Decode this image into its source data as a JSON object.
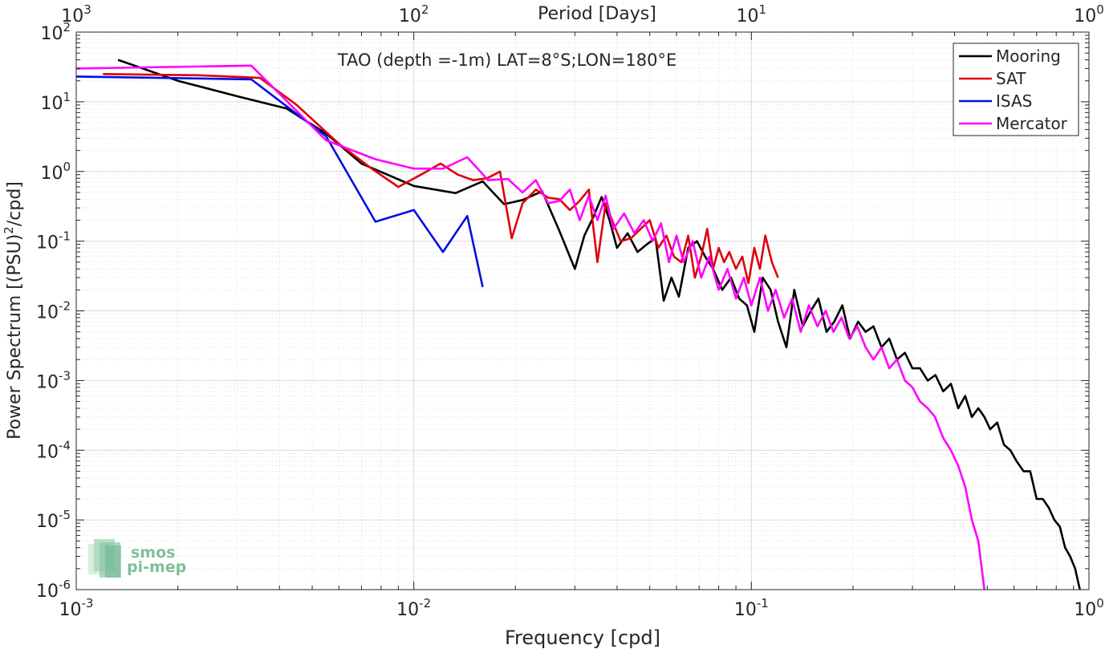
{
  "chart_data": {
    "type": "line",
    "title": "TAO (depth =-1m) LAT=8°S;LON=180°E",
    "xlabel": "Frequency [cpd]",
    "ylabel": "Power Spectrum [(PSU)",
    "ylabel_sup": "2",
    "ylabel_tail": "/cpd]",
    "top_axis_label": "Period [Days]",
    "x_scale": "log",
    "y_scale": "log",
    "xlim": [
      0.001,
      1
    ],
    "ylim": [
      1e-06,
      100
    ],
    "grid": true,
    "legend_position": "top-right",
    "x_ticks": [
      {
        "base": "10",
        "exp": "-3"
      },
      {
        "base": "10",
        "exp": "-2"
      },
      {
        "base": "10",
        "exp": "-1"
      },
      {
        "base": "10",
        "exp": "0"
      }
    ],
    "y_ticks": [
      {
        "base": "10",
        "exp": "-6"
      },
      {
        "base": "10",
        "exp": "-5"
      },
      {
        "base": "10",
        "exp": "-4"
      },
      {
        "base": "10",
        "exp": "-3"
      },
      {
        "base": "10",
        "exp": "-2"
      },
      {
        "base": "10",
        "exp": "-1"
      },
      {
        "base": "10",
        "exp": "0"
      },
      {
        "base": "10",
        "exp": "1"
      },
      {
        "base": "10",
        "exp": "2"
      }
    ],
    "top_ticks": [
      {
        "base": "10",
        "exp": "3"
      },
      {
        "base": "10",
        "exp": "2"
      },
      {
        "base": "10",
        "exp": "1"
      },
      {
        "base": "10",
        "exp": "0"
      }
    ],
    "series": [
      {
        "name": "Mooring",
        "color": "#000000",
        "x": [
          0.00133,
          0.002,
          0.003,
          0.0042,
          0.0055,
          0.007,
          0.01,
          0.0133,
          0.016,
          0.0185,
          0.021,
          0.024,
          0.027,
          0.03,
          0.032,
          0.034,
          0.036,
          0.038,
          0.04,
          0.043,
          0.046,
          0.049,
          0.052,
          0.055,
          0.058,
          0.061,
          0.065,
          0.069,
          0.073,
          0.077,
          0.082,
          0.087,
          0.092,
          0.097,
          0.102,
          0.108,
          0.114,
          0.12,
          0.127,
          0.134,
          0.142,
          0.15,
          0.158,
          0.167,
          0.176,
          0.186,
          0.196,
          0.207,
          0.218,
          0.23,
          0.243,
          0.256,
          0.27,
          0.285,
          0.3,
          0.316,
          0.333,
          0.351,
          0.37,
          0.39,
          0.41,
          0.43,
          0.45,
          0.47,
          0.49,
          0.51,
          0.535,
          0.56,
          0.585,
          0.61,
          0.64,
          0.67,
          0.7,
          0.73,
          0.76,
          0.79,
          0.82,
          0.85,
          0.88,
          0.91,
          0.94
        ],
        "y": [
          40,
          20,
          12,
          8,
          3.5,
          1.3,
          0.62,
          0.49,
          0.72,
          0.34,
          0.39,
          0.52,
          0.14,
          0.04,
          0.12,
          0.22,
          0.43,
          0.2,
          0.08,
          0.13,
          0.07,
          0.09,
          0.11,
          0.014,
          0.03,
          0.016,
          0.08,
          0.1,
          0.06,
          0.04,
          0.02,
          0.03,
          0.015,
          0.012,
          0.005,
          0.03,
          0.02,
          0.007,
          0.003,
          0.02,
          0.006,
          0.01,
          0.015,
          0.005,
          0.007,
          0.012,
          0.004,
          0.007,
          0.005,
          0.006,
          0.003,
          0.004,
          0.002,
          0.0025,
          0.0015,
          0.0015,
          0.001,
          0.0012,
          0.0007,
          0.0009,
          0.0004,
          0.0006,
          0.0003,
          0.0004,
          0.0003,
          0.0002,
          0.00025,
          0.00012,
          0.0001,
          7e-05,
          5e-05,
          5e-05,
          2e-05,
          2e-05,
          1.5e-05,
          1e-05,
          8e-06,
          4e-06,
          3e-06,
          2e-06,
          1e-06
        ]
      },
      {
        "name": "SAT",
        "color": "#e0000a",
        "x": [
          0.0012,
          0.0023,
          0.0035,
          0.0045,
          0.006,
          0.0075,
          0.009,
          0.0105,
          0.012,
          0.0135,
          0.015,
          0.0165,
          0.018,
          0.0195,
          0.021,
          0.023,
          0.025,
          0.027,
          0.029,
          0.031,
          0.033,
          0.035,
          0.037,
          0.039,
          0.041,
          0.044,
          0.047,
          0.05,
          0.053,
          0.056,
          0.059,
          0.062,
          0.065,
          0.068,
          0.071,
          0.074,
          0.077,
          0.08,
          0.083,
          0.086,
          0.09,
          0.094,
          0.098,
          0.102,
          0.106,
          0.11,
          0.115,
          0.12
        ],
        "y": [
          25,
          24,
          22,
          9,
          2.5,
          1.1,
          0.6,
          0.9,
          1.3,
          0.9,
          0.75,
          0.8,
          1.0,
          0.11,
          0.35,
          0.55,
          0.42,
          0.4,
          0.28,
          0.38,
          0.55,
          0.05,
          0.35,
          0.18,
          0.1,
          0.11,
          0.15,
          0.2,
          0.08,
          0.12,
          0.06,
          0.05,
          0.12,
          0.03,
          0.06,
          0.15,
          0.04,
          0.08,
          0.05,
          0.07,
          0.04,
          0.06,
          0.025,
          0.08,
          0.04,
          0.12,
          0.05,
          0.03
        ]
      },
      {
        "name": "ISAS",
        "color": "#0010e0",
        "x": [
          0.001,
          0.0033,
          0.0055,
          0.0077,
          0.01,
          0.0122,
          0.0144,
          0.016
        ],
        "y": [
          23,
          21,
          3.2,
          0.19,
          0.28,
          0.07,
          0.23,
          0.022
        ]
      },
      {
        "name": "Mercator",
        "color": "#ff00ff",
        "x": [
          0.001,
          0.0033,
          0.0055,
          0.0077,
          0.01,
          0.0122,
          0.0144,
          0.0166,
          0.019,
          0.021,
          0.023,
          0.025,
          0.027,
          0.029,
          0.031,
          0.033,
          0.035,
          0.037,
          0.039,
          0.042,
          0.045,
          0.048,
          0.051,
          0.054,
          0.057,
          0.06,
          0.063,
          0.067,
          0.071,
          0.075,
          0.08,
          0.085,
          0.09,
          0.095,
          0.1,
          0.106,
          0.112,
          0.118,
          0.125,
          0.132,
          0.14,
          0.148,
          0.157,
          0.166,
          0.175,
          0.185,
          0.195,
          0.206,
          0.218,
          0.23,
          0.243,
          0.256,
          0.27,
          0.285,
          0.3,
          0.316,
          0.333,
          0.35,
          0.37,
          0.39,
          0.41,
          0.43,
          0.45,
          0.47,
          0.49
        ],
        "y": [
          30,
          33,
          2.8,
          1.5,
          1.1,
          1.1,
          1.6,
          0.75,
          0.78,
          0.5,
          0.75,
          0.35,
          0.38,
          0.55,
          0.2,
          0.45,
          0.2,
          0.45,
          0.15,
          0.25,
          0.13,
          0.2,
          0.1,
          0.18,
          0.05,
          0.12,
          0.05,
          0.1,
          0.03,
          0.06,
          0.02,
          0.04,
          0.015,
          0.03,
          0.012,
          0.03,
          0.01,
          0.02,
          0.008,
          0.015,
          0.005,
          0.012,
          0.006,
          0.01,
          0.005,
          0.008,
          0.004,
          0.006,
          0.003,
          0.002,
          0.003,
          0.0015,
          0.002,
          0.001,
          0.0008,
          0.0005,
          0.0004,
          0.0003,
          0.00015,
          0.0001,
          6e-05,
          3e-05,
          1e-05,
          5e-06,
          1e-06
        ]
      }
    ]
  },
  "logo": {
    "line1": "smos",
    "line2": "pi-mep",
    "color": "#7fbf9a"
  }
}
